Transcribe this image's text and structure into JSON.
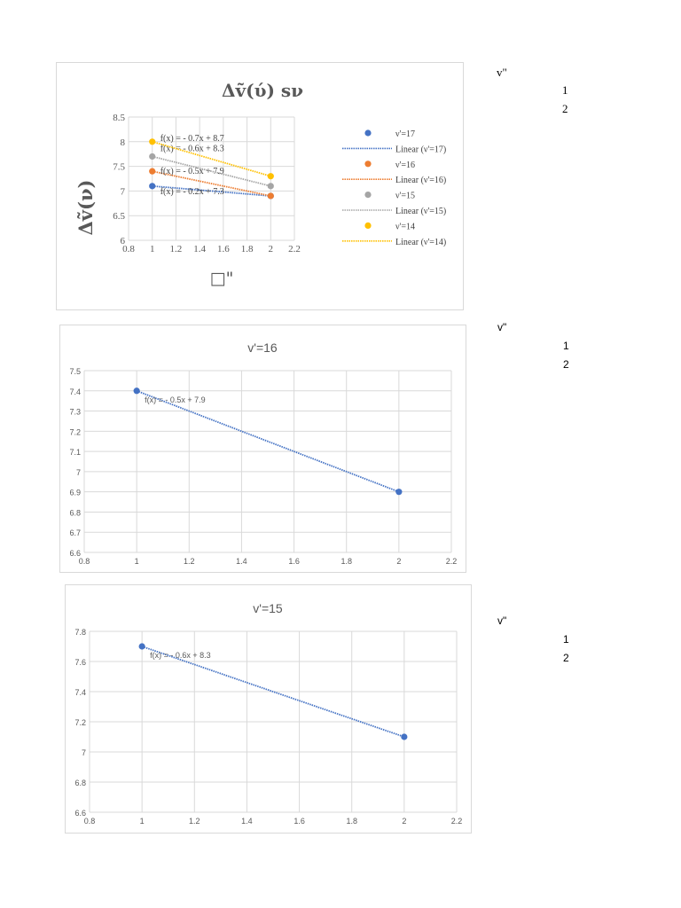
{
  "charts": [
    {
      "id": "c1",
      "chart_data": {
        "type": "scatter",
        "title": "Δṽ(ύ)  sν",
        "ylabel": "Δṽ(ν)",
        "xlabel": "□\"",
        "xlim": [
          0.8,
          2.2
        ],
        "ylim": [
          6,
          8.5
        ],
        "xticks": [
          "0.8",
          "1",
          "1.2",
          "1.4",
          "1.6",
          "1.8",
          "2",
          "2.2"
        ],
        "yticks": [
          "6",
          "6.5",
          "7",
          "7.5",
          "8",
          "8.5"
        ],
        "grid": true,
        "legend": "right",
        "series": [
          {
            "name": "ν'=17",
            "trend_name": "Linear (ν'=17)",
            "color": "#4472c4",
            "x": [
              1,
              2
            ],
            "y": [
              7.1,
              6.9
            ],
            "slope": -0.2,
            "intercept": 7.3,
            "equation": "f(x) =  - 0.2x + 7.3"
          },
          {
            "name": "ν'=16",
            "trend_name": "Linear (ν'=16)",
            "color": "#ed7d31",
            "x": [
              1,
              2
            ],
            "y": [
              7.4,
              6.9
            ],
            "slope": -0.5,
            "intercept": 7.9,
            "equation": "f(x) =  - 0.5x + 7.9"
          },
          {
            "name": "ν'=15",
            "trend_name": "Linear (ν'=15)",
            "color": "#a5a5a5",
            "x": [
              1,
              2
            ],
            "y": [
              7.7,
              7.1
            ],
            "slope": -0.6,
            "intercept": 8.3,
            "equation": "f(x) =  - 0.6x + 8.3"
          },
          {
            "name": "ν'=14",
            "trend_name": "Linear (ν'=14)",
            "color": "#ffc000",
            "x": [
              1,
              2
            ],
            "y": [
              8.0,
              7.3
            ],
            "slope": -0.7,
            "intercept": 8.7,
            "equation": "f(x) =  - 0.7x + 8.7"
          }
        ]
      }
    },
    {
      "id": "c2",
      "chart_data": {
        "type": "scatter",
        "title": "v'=16",
        "xlim": [
          0.8,
          2.2
        ],
        "ylim": [
          6.6,
          7.5
        ],
        "xticks": [
          "0.8",
          "1",
          "1.2",
          "1.4",
          "1.6",
          "1.8",
          "2",
          "2.2"
        ],
        "yticks": [
          "6.6",
          "6.7",
          "6.8",
          "6.9",
          "7",
          "7.1",
          "7.2",
          "7.3",
          "7.4",
          "7.5"
        ],
        "grid": true,
        "series": [
          {
            "color": "#4472c4",
            "x": [
              1,
              2
            ],
            "y": [
              7.4,
              6.9
            ],
            "slope": -0.5,
            "intercept": 7.9,
            "equation": "f(x) =  - 0.5x + 7.9"
          }
        ]
      }
    },
    {
      "id": "c3",
      "chart_data": {
        "type": "scatter",
        "title": "v'=15",
        "xlim": [
          0.8,
          2.2
        ],
        "ylim": [
          6.6,
          7.8
        ],
        "xticks": [
          "0.8",
          "1",
          "1.2",
          "1.4",
          "1.6",
          "1.8",
          "2",
          "2.2"
        ],
        "yticks": [
          "6.6",
          "6.8",
          "7",
          "7.2",
          "7.4",
          "7.6",
          "7.8"
        ],
        "grid": true,
        "series": [
          {
            "color": "#4472c4",
            "x": [
              1,
              2
            ],
            "y": [
              7.7,
              7.1
            ],
            "slope": -0.6,
            "intercept": 8.3,
            "equation": "f(x) =  - 0.6x + 8.3"
          }
        ]
      }
    }
  ],
  "side_tables": [
    {
      "header": "v\"",
      "values": [
        "1",
        "2"
      ]
    },
    {
      "header": "v\"",
      "values": [
        "1",
        "2"
      ]
    },
    {
      "header": "v\"",
      "values": [
        "1",
        "2"
      ]
    }
  ]
}
